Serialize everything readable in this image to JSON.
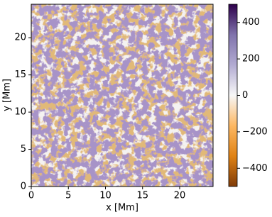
{
  "chart_data": {
    "type": "heatmap",
    "xlabel": "x [Mm]",
    "ylabel": "y [Mm]",
    "xlim": [
      0,
      24.5
    ],
    "ylim": [
      0,
      24.5
    ],
    "xticks": [
      0,
      5,
      10,
      15,
      20
    ],
    "yticks": [
      0,
      5,
      10,
      15,
      20
    ],
    "colorbar": {
      "lim": [
        -500,
        500
      ],
      "ticks": [
        {
          "value": -400,
          "label": "−400"
        },
        {
          "value": -200,
          "label": "−200"
        },
        0,
        200,
        400
      ],
      "colors": [
        "#7f3b08",
        "#e08214",
        "#fdb863",
        "#f7f7f7",
        "#b2abd2",
        "#8073ac",
        "#2d004b"
      ]
    }
  }
}
